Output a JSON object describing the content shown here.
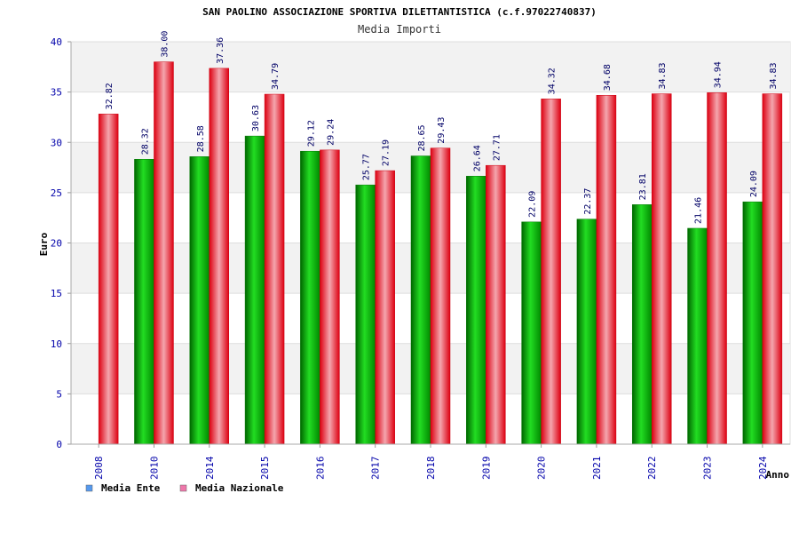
{
  "chart_data": {
    "type": "bar",
    "title": "SAN PAOLINO ASSOCIAZIONE SPORTIVA DILETTANTISTICA (c.f.97022740837)",
    "subtitle": "Media Importi",
    "xlabel": "Anno",
    "ylabel": "Euro",
    "ylim": [
      0,
      40
    ],
    "yticks": [
      "0",
      "5",
      "10",
      "15",
      "20",
      "25",
      "30",
      "35",
      "40"
    ],
    "categories": [
      "2008",
      "2010",
      "2014",
      "2015",
      "2016",
      "2017",
      "2018",
      "2019",
      "2020",
      "2021",
      "2022",
      "2023",
      "2024"
    ],
    "series": [
      {
        "name": "Media Ente",
        "color": "#00aa00",
        "values": [
          null,
          28.32,
          28.58,
          30.63,
          29.12,
          25.77,
          28.65,
          26.64,
          22.09,
          22.37,
          23.81,
          21.46,
          24.09
        ],
        "labels": [
          "",
          "28.32",
          "28.58",
          "30.63",
          "29.12",
          "25.77",
          "28.65",
          "26.64",
          "22.09",
          "22.37",
          "23.81",
          "21.46",
          "24.09"
        ]
      },
      {
        "name": "Media Nazionale",
        "color": "#ee1122",
        "values": [
          32.82,
          38.0,
          37.36,
          34.79,
          29.24,
          27.19,
          29.43,
          27.71,
          34.32,
          34.68,
          34.83,
          34.94,
          34.83
        ],
        "labels": [
          "32.82",
          "38.00",
          "37.36",
          "34.79",
          "29.24",
          "27.19",
          "29.43",
          "27.71",
          "34.32",
          "34.68",
          "34.83",
          "34.94",
          "34.83"
        ]
      }
    ],
    "legend": [
      {
        "label": "Media Ente",
        "color": "#5599ee"
      },
      {
        "label": "Media Nazionale",
        "color": "#ee77aa"
      }
    ],
    "grid": true,
    "legend_position": "bottom-left"
  }
}
